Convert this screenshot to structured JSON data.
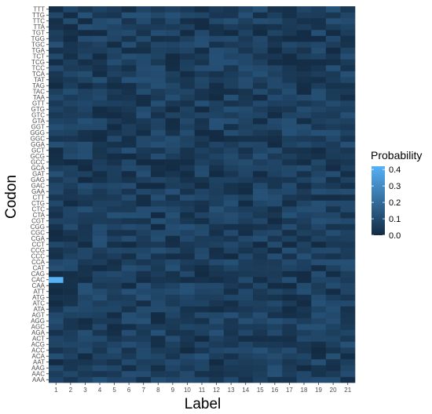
{
  "chart_data": {
    "type": "heatmap",
    "xlabel": "Label",
    "ylabel": "Codon",
    "x_categories": [
      "1",
      "2",
      "3",
      "4",
      "5",
      "6",
      "7",
      "8",
      "9",
      "10",
      "11",
      "12",
      "13",
      "14",
      "15",
      "16",
      "17",
      "18",
      "19",
      "20",
      "21"
    ],
    "y_categories": [
      "AAA",
      "AAC",
      "AAG",
      "AAT",
      "ACA",
      "ACC",
      "ACG",
      "ACT",
      "AGA",
      "AGC",
      "AGG",
      "AGT",
      "ATA",
      "ATC",
      "ATG",
      "ATT",
      "CAA",
      "CAC",
      "CAG",
      "CAT",
      "CCA",
      "CCC",
      "CCG",
      "CCT",
      "CGA",
      "CGC",
      "CGG",
      "CGT",
      "CTA",
      "CTC",
      "CTG",
      "CTT",
      "GAA",
      "GAC",
      "GAG",
      "GAT",
      "GCA",
      "GCC",
      "GCG",
      "GCT",
      "GGA",
      "GGC",
      "GGG",
      "GGT",
      "GTA",
      "GTC",
      "GTG",
      "GTT",
      "TAA",
      "TAC",
      "TAG",
      "TAT",
      "TCA",
      "TCC",
      "TCG",
      "TCT",
      "TGA",
      "TGC",
      "TGG",
      "TGT",
      "TTA",
      "TTC",
      "TTG",
      "TTT"
    ],
    "value_range": [
      0,
      0.42
    ],
    "typical_value_range": [
      0.0,
      0.12
    ],
    "highlight": {
      "x": "1",
      "y": "CAC",
      "value": 0.42
    },
    "grid": false,
    "legend": {
      "title": "Probability",
      "ticks": [
        0.0,
        0.1,
        0.2,
        0.3,
        0.4
      ],
      "tick_labels": [
        "0.0",
        "0.1",
        "0.2",
        "0.3",
        "0.4"
      ],
      "low_color": "#132B43",
      "high_color": "#56B1F7",
      "placement": "right"
    }
  }
}
